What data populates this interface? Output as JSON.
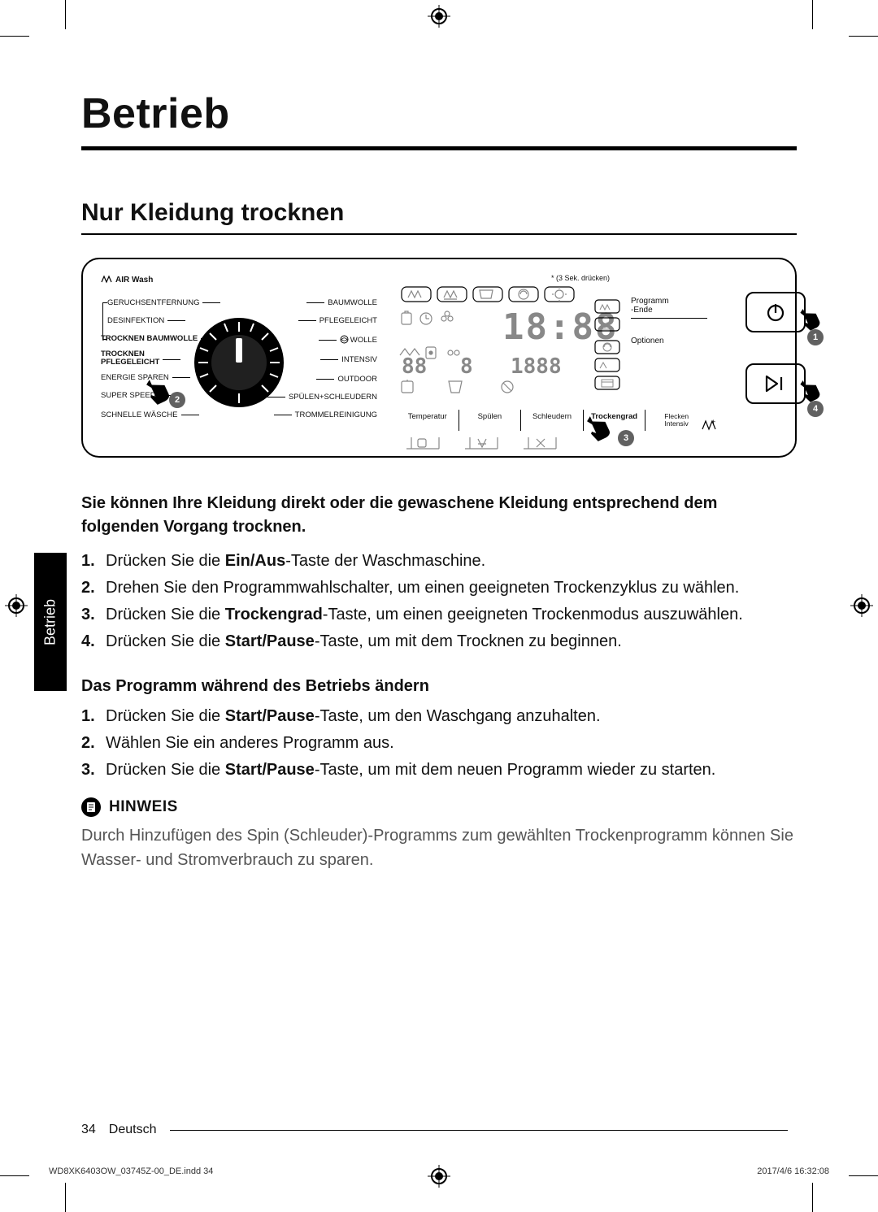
{
  "colors": {
    "text": "#111111",
    "muted": "#555555",
    "badge_bg": "#616161",
    "badge_fg": "#ffffff",
    "line": "#000000",
    "background": "#ffffff"
  },
  "typography": {
    "title_fontsize": 52,
    "section_fontsize": 30,
    "body_fontsize": 20,
    "figure_label_fontsize": 10,
    "footer_fontsize": 16,
    "imprint_fontsize": 11
  },
  "title": "Betrieb",
  "section_heading": "Nur Kleidung trocknen",
  "figure": {
    "air_wash": "AIR Wash",
    "prog_left": [
      {
        "text": "GERUCHSENTFERNUNG",
        "bold": false
      },
      {
        "text": "DESINFEKTION",
        "bold": false
      },
      {
        "text": "TROCKNEN BAUMWOLLE",
        "bold": true
      },
      {
        "text": "TROCKNEN\nPFLEGELEICHT",
        "bold": true
      },
      {
        "text": "ENERGIE SPAREN",
        "bold": false
      },
      {
        "text": "SUPER SPEED",
        "bold": false
      },
      {
        "text": "SCHNELLE WÄSCHE",
        "bold": false
      }
    ],
    "prog_right": [
      {
        "text": "BAUMWOLLE",
        "bold": false
      },
      {
        "text": "PFLEGELEICHT",
        "bold": false
      },
      {
        "text": "WOLLE",
        "bold": false,
        "icon": "wool"
      },
      {
        "text": "INTENSIV",
        "bold": false
      },
      {
        "text": "OUTDOOR",
        "bold": false
      },
      {
        "text": "SPÜLEN+SCHLEUDERN",
        "bold": false
      },
      {
        "text": "TROMMELREINIGUNG",
        "bold": false
      }
    ],
    "press_note": "* (3 Sek. drücken)",
    "lcd_main": "18:88",
    "lcd_sub1": "88",
    "lcd_sub2": "8",
    "lcd_sub3": "1888",
    "right_labels": {
      "prog_ende": "Programm\n-Ende",
      "optionen": "Optionen"
    },
    "bottom_buttons": [
      {
        "label": "Temperatur",
        "bold": false
      },
      {
        "label": "Spülen",
        "bold": false
      },
      {
        "label": "Schleudern",
        "bold": false
      },
      {
        "label": "Trockengrad",
        "bold": true
      },
      {
        "label": "Flecken\nIntensiv",
        "bold": false
      }
    ],
    "badges": {
      "dial": "2",
      "selectors": "3",
      "power": "1",
      "play": "4"
    },
    "power_icon": "power",
    "play_icon": "play-pause"
  },
  "intro": "Sie können Ihre Kleidung direkt oder die gewaschene Kleidung entsprechend  dem folgenden Vorgang trocknen.",
  "steps_main": [
    {
      "pre": "Drücken Sie die ",
      "kw": "Ein/Aus",
      "post": "-Taste der Waschmaschine."
    },
    {
      "text": "Drehen Sie den Programmwahlschalter, um einen geeigneten Trockenzyklus zu wählen."
    },
    {
      "pre": "Drücken Sie die ",
      "kw": "Trockengrad",
      "post": "-Taste, um einen geeigneten Trockenmodus auszuwählen."
    },
    {
      "pre": "Drücken Sie die ",
      "kw": "Start/Pause",
      "post": "-Taste, um mit dem Trocknen zu beginnen."
    }
  ],
  "subheading": "Das Programm während des Betriebs ändern",
  "steps_sub": [
    {
      "pre": "Drücken Sie die ",
      "kw": "Start/Pause",
      "post": "-Taste, um den Waschgang anzuhalten."
    },
    {
      "text": "Wählen Sie ein anderes Programm aus."
    },
    {
      "pre": "Drücken Sie die ",
      "kw": "Start/Pause",
      "post": "-Taste, um mit dem neuen Programm wieder zu starten."
    }
  ],
  "hinweis_label": "HINWEIS",
  "hinweis_body": "Durch Hinzufügen des Spin (Schleuder)-Programms zum gewählten Trockenprogramm können Sie Wasser- und Stromverbrauch zu sparen.",
  "side_tab": "Betrieb",
  "footer": {
    "page": "34",
    "lang": "Deutsch"
  },
  "imprint": {
    "left": "WD8XK6403OW_03745Z-00_DE.indd   34",
    "right": "2017/4/6   16:32:08"
  }
}
